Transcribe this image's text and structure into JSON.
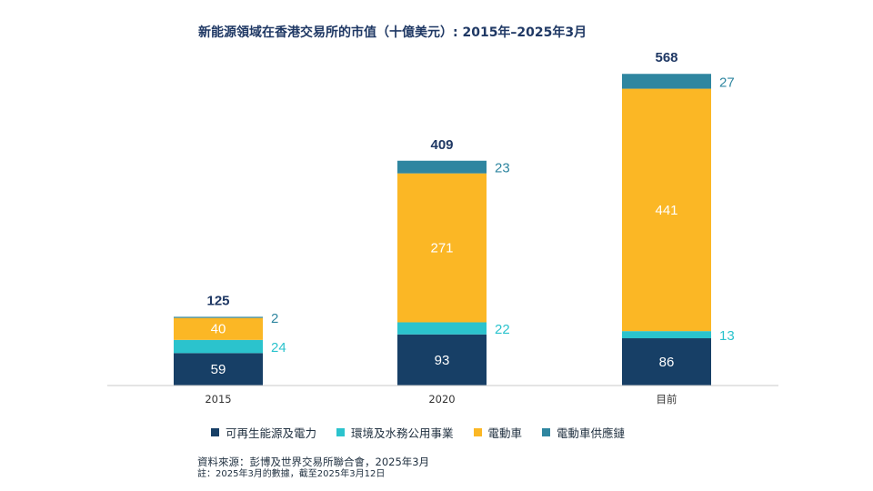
{
  "chart_data": {
    "type": "bar",
    "stacked": true,
    "title": "新能源領域在香港交易所的市值（十億美元）: 2015年–2025年3月",
    "categories": [
      "2015",
      "2020",
      "目前"
    ],
    "totals": [
      125,
      409,
      568
    ],
    "series": [
      {
        "name": "可再生能源及電力",
        "values": [
          59,
          93,
          86
        ],
        "color": "#173f66",
        "label_position": "inside"
      },
      {
        "name": "環境及水務公用事業",
        "values": [
          24,
          22,
          13
        ],
        "color": "#2bc3cd",
        "label_position": "outside"
      },
      {
        "name": "電動車",
        "values": [
          40,
          271,
          441
        ],
        "color": "#fbb725",
        "label_position": "inside"
      },
      {
        "name": "電動車供應鏈",
        "values": [
          2,
          23,
          27
        ],
        "color": "#2f86a0",
        "label_position": "outside"
      }
    ],
    "ylim": [
      0,
      600
    ],
    "grid": false,
    "legend_position": "bottom"
  },
  "source": "資料來源：彭博及世界交易所聯合會，2025年3月",
  "footnote": "註：2025年3月的數據，截至2025年3月12日"
}
